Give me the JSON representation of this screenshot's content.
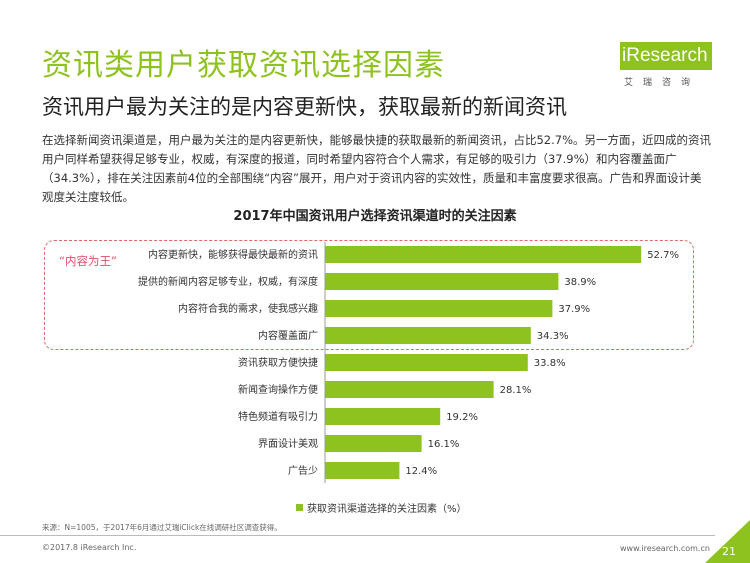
{
  "header": {
    "title": "资讯类用户获取资讯选择因素",
    "subtitle": "资讯用户最为关注的是内容更新快，获取最新的新闻资讯",
    "description": "在选择新闻资讯渠道是，用户最为关注的是内容更新快，能够最快捷的获取最新的新闻资讯，占比52.7%。另一方面，近四成的资讯用户同样希望获得足够专业，权威，有深度的报道，同时希望内容符合个人需求，有足够的吸引力（37.9%）和内容覆盖面广（34.3%），排在关注因素前4位的全部围绕“内容”展开，用户对于资讯内容的实效性，质量和丰富度要求很高。广告和界面设计美观度关注度较低。"
  },
  "logo": {
    "text": "iResearch",
    "sub": "艾瑞咨询",
    "color": "#8dc21f"
  },
  "highlight_tag": "“内容为王”",
  "chart_data": {
    "type": "bar",
    "orientation": "horizontal",
    "title": "2017年中国资讯用户选择资讯渠道时的关注因素",
    "categories": [
      "内容更新快，能够获得最快最新的资讯",
      "提供的新闻内容足够专业，权威，有深度",
      "内容符合我的需求，使我感兴趣",
      "内容覆盖面广",
      "资讯获取方便快捷",
      "新闻查询操作方便",
      "特色频道有吸引力",
      "界面设计美观",
      "广告少"
    ],
    "series": [
      {
        "name": "获取资讯渠道选择的关注因素（%）",
        "values": [
          52.7,
          38.9,
          37.9,
          34.3,
          33.8,
          28.1,
          19.2,
          16.1,
          12.4
        ],
        "labels": [
          "52.7%",
          "38.9%",
          "37.9%",
          "34.3%",
          "33.8%",
          "28.1%",
          "19.2%",
          "16.1%",
          "12.4%"
        ]
      }
    ],
    "xlim": [
      0,
      60
    ],
    "grid": false,
    "legend": "bottom",
    "bar_color": "#8dc21f"
  },
  "footer": {
    "source": "来源：N=1005，于2017年6月通过艾瑞iClick在线调研社区调查获得。",
    "copyright": "©2017.8 iResearch Inc.",
    "website": "www.iresearch.com.cn",
    "page": "21"
  }
}
